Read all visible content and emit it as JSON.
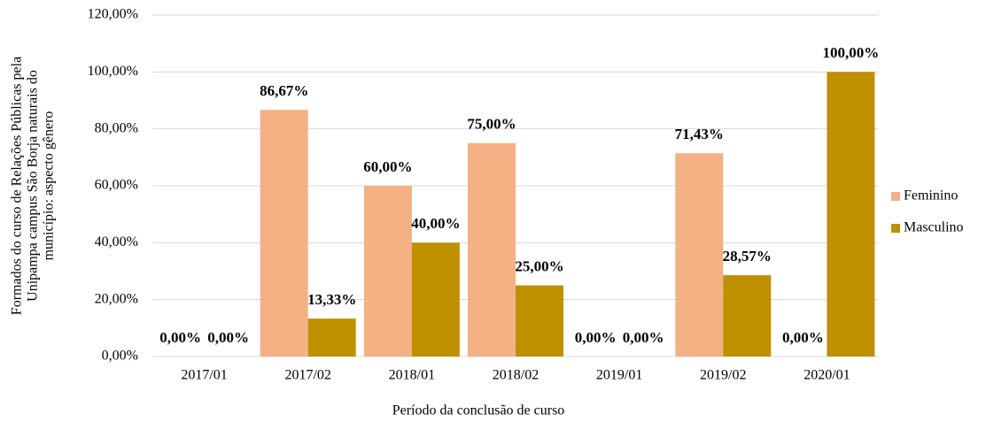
{
  "chart_data": {
    "type": "bar",
    "y_label": [
      "Formados do curso de Relações Públicas pela",
      "Unipampa campus São Borja naturais do",
      "município: aspecto gênero"
    ],
    "x_label": "Período da conclusão de curso",
    "categories": [
      "2017/01",
      "2017/02",
      "2018/01",
      "2018/02",
      "2019/01",
      "2019/02",
      "2020/01"
    ],
    "series": [
      {
        "name": "Feminino",
        "color": "#f4b183",
        "values": [
          0,
          86.67,
          60,
          75,
          0,
          71.43,
          0
        ],
        "value_labels": [
          "0,00%",
          "86,67%",
          "60,00%",
          "75,00%",
          "0,00%",
          "71,43%",
          "0,00%"
        ]
      },
      {
        "name": "Masculino",
        "color": "#bf9000",
        "values": [
          0,
          13.33,
          40,
          25,
          0,
          28.57,
          100
        ],
        "value_labels": [
          "0,00%",
          "13,33%",
          "40,00%",
          "25,00%",
          "0,00%",
          "28,57%",
          "100,00%"
        ]
      }
    ],
    "ylim": [
      0,
      120
    ],
    "yticks": [
      {
        "value": 0,
        "label": "0,00%"
      },
      {
        "value": 20,
        "label": "20,00%"
      },
      {
        "value": 40,
        "label": "40,00%"
      },
      {
        "value": 60,
        "label": "60,00%"
      },
      {
        "value": 80,
        "label": "80,00%"
      },
      {
        "value": 100,
        "label": "100,00%"
      },
      {
        "value": 120,
        "label": "120,00%"
      }
    ],
    "grid": true,
    "legend": "right"
  }
}
